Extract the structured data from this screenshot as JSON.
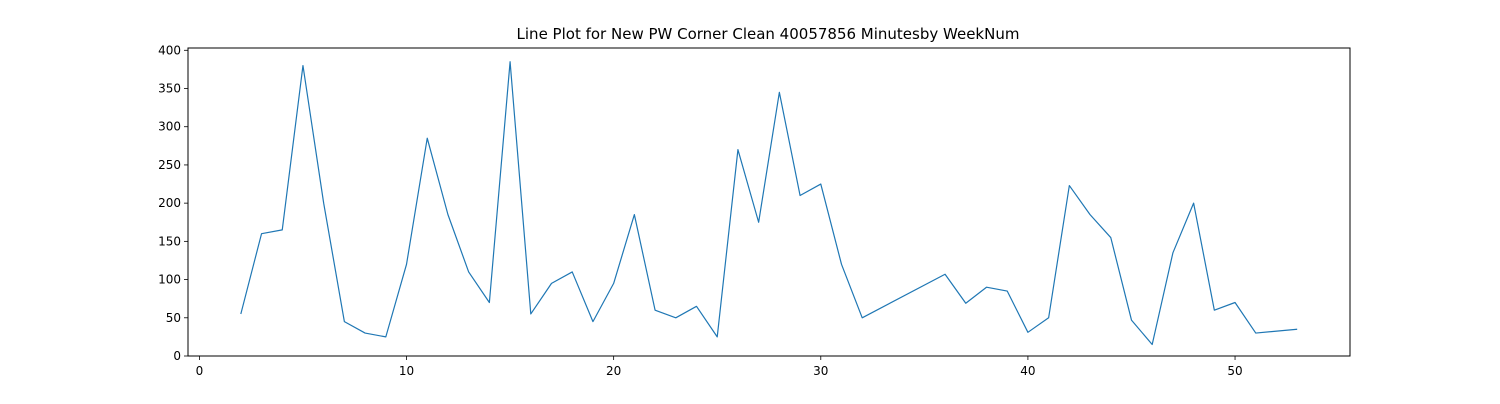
{
  "chart_data": {
    "type": "line",
    "title": "Line Plot for New PW Corner Clean 40057856 Minutesby WeekNum",
    "xlabel": "",
    "ylabel": "",
    "xlim": [
      -0.55,
      55.55
    ],
    "ylim": [
      0,
      403
    ],
    "x_ticks": [
      0,
      10,
      20,
      30,
      40,
      50
    ],
    "y_ticks": [
      0,
      50,
      100,
      150,
      200,
      250,
      300,
      350,
      400
    ],
    "grid": false,
    "legend": "none",
    "line_color": "#1f77b4",
    "series": [
      {
        "x": [
          2,
          3,
          4,
          5,
          6,
          7,
          8,
          9,
          10,
          11,
          12,
          13,
          14,
          15,
          16,
          17,
          18,
          19,
          20,
          21,
          22,
          23,
          24,
          25,
          26,
          27,
          28,
          29,
          30,
          31,
          32,
          36,
          37,
          38,
          39,
          40,
          41,
          42,
          43,
          44,
          45,
          46,
          47,
          48,
          49,
          50,
          51,
          53
        ],
        "values": [
          55,
          160,
          165,
          380,
          200,
          45,
          30,
          25,
          120,
          285,
          185,
          110,
          70,
          385,
          55,
          95,
          110,
          45,
          95,
          185,
          60,
          50,
          65,
          25,
          270,
          175,
          345,
          210,
          225,
          120,
          50,
          107,
          69,
          90,
          85,
          31,
          50,
          223,
          185,
          155,
          47,
          15,
          135,
          200,
          60,
          70,
          30,
          35
        ]
      }
    ]
  }
}
